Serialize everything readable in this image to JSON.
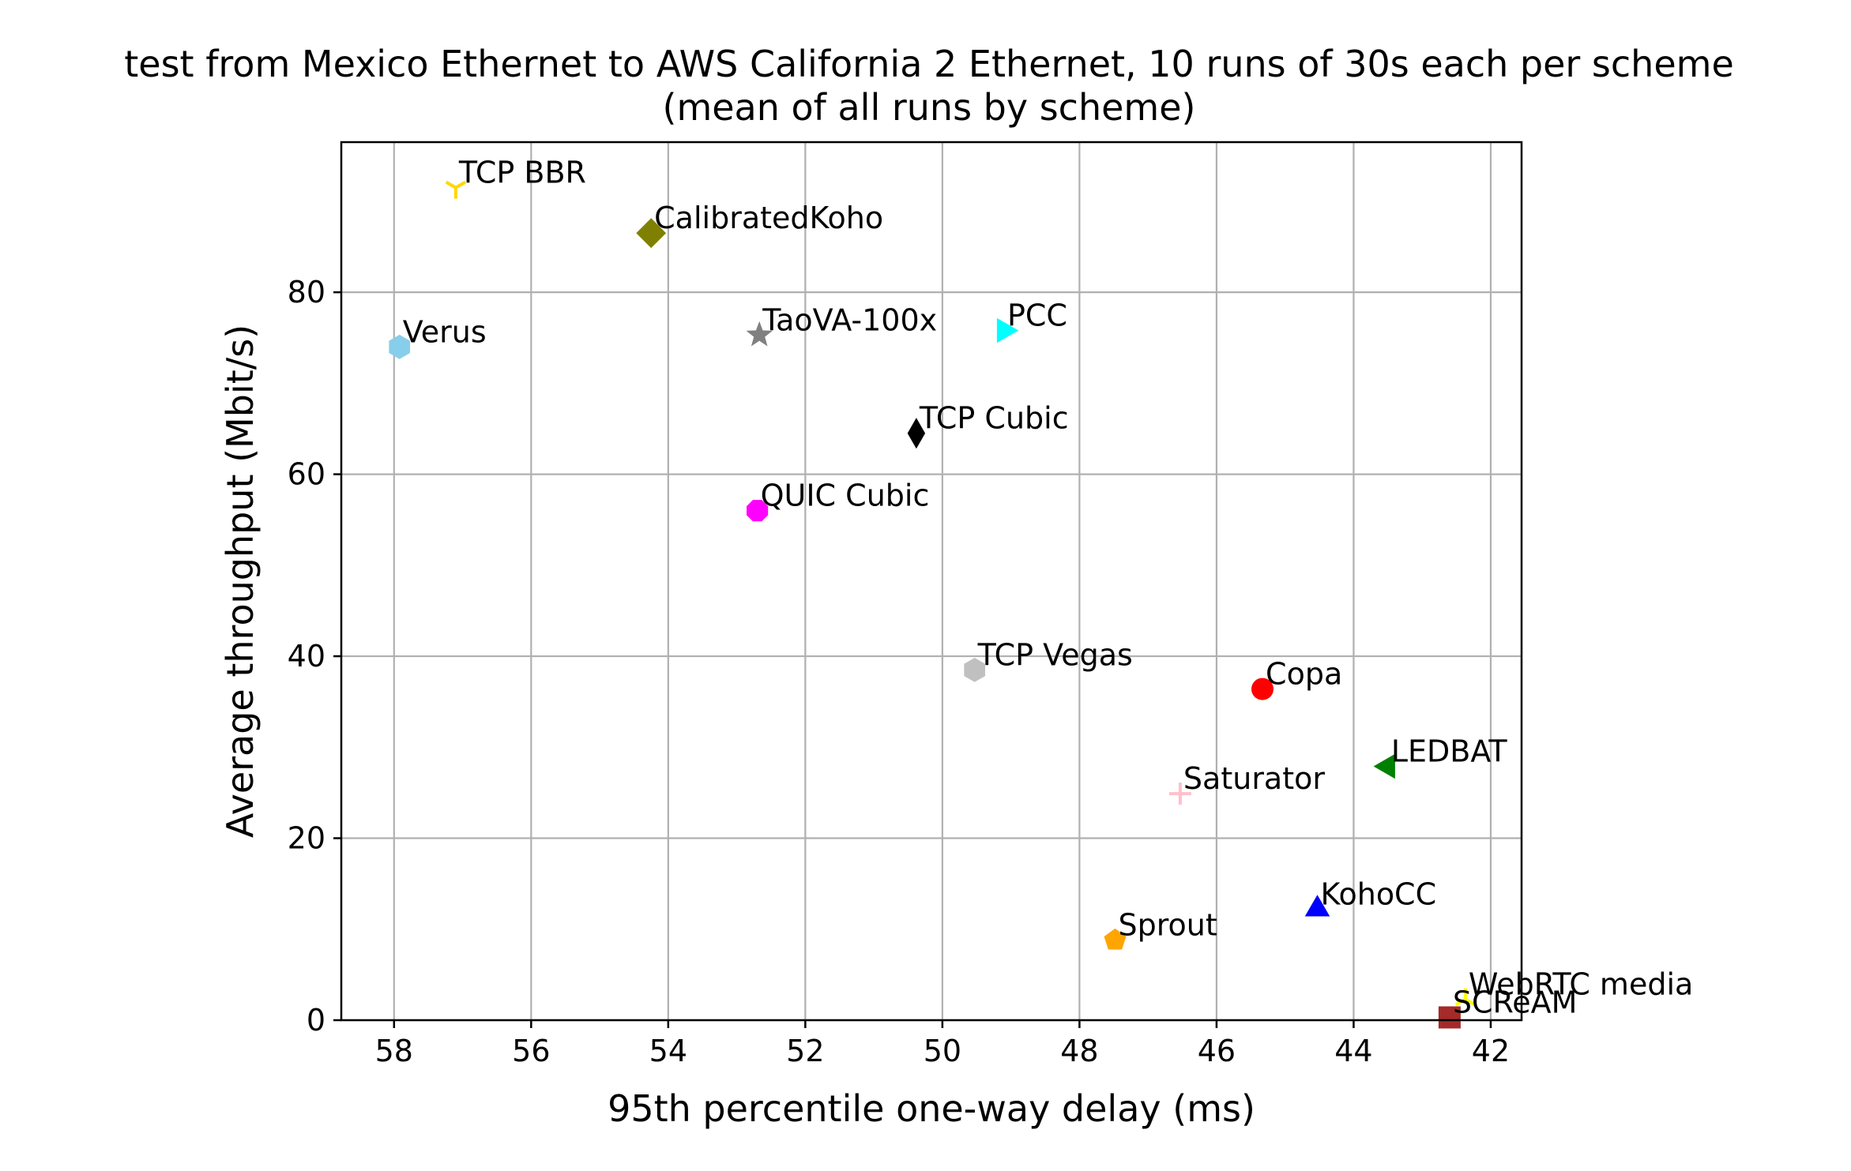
{
  "chart_data": {
    "type": "scatter",
    "title": "test from Mexico Ethernet to AWS California 2 Ethernet, 10 runs of 30s each per scheme",
    "subtitle": "(mean of all runs by scheme)",
    "xlabel": "95th percentile one-way delay (ms)",
    "ylabel": "Average throughput (Mbit/s)",
    "xlim": [
      58.77,
      41.55
    ],
    "ylim": [
      0,
      96.5
    ],
    "x_inverted": true,
    "xticks": [
      58,
      56,
      54,
      52,
      50,
      48,
      46,
      44,
      42
    ],
    "yticks": [
      0,
      20,
      40,
      60,
      80
    ],
    "grid": true,
    "points": [
      {
        "name": "TCP BBR",
        "x": 57.1,
        "y": 91.5,
        "marker": "tri-down",
        "color": "#ffd700"
      },
      {
        "name": "CalibratedKoho",
        "x": 54.25,
        "y": 86.5,
        "marker": "diamond",
        "color": "#808000"
      },
      {
        "name": "Verus",
        "x": 57.92,
        "y": 74.0,
        "marker": "hexagon",
        "color": "#87ceeb"
      },
      {
        "name": "TaoVA-100x",
        "x": 52.67,
        "y": 75.3,
        "marker": "star",
        "color": "#808080"
      },
      {
        "name": "PCC",
        "x": 49.1,
        "y": 75.8,
        "marker": "triangle-right",
        "color": "#00ffff"
      },
      {
        "name": "TCP Cubic",
        "x": 50.38,
        "y": 64.5,
        "marker": "thin-diamond",
        "color": "#000000"
      },
      {
        "name": "QUIC Cubic",
        "x": 52.7,
        "y": 56.0,
        "marker": "octagon",
        "color": "#ff00ff"
      },
      {
        "name": "TCP Vegas",
        "x": 49.53,
        "y": 38.5,
        "marker": "hexagon",
        "color": "#c0c0c0"
      },
      {
        "name": "Copa",
        "x": 45.33,
        "y": 36.4,
        "marker": "circle",
        "color": "#ff0000"
      },
      {
        "name": "LEDBAT",
        "x": 43.5,
        "y": 27.9,
        "marker": "triangle-left",
        "color": "#008000"
      },
      {
        "name": "Saturator",
        "x": 46.53,
        "y": 24.9,
        "marker": "plus",
        "color": "#ffc0cb"
      },
      {
        "name": "KohoCC",
        "x": 44.53,
        "y": 12.2,
        "marker": "triangle-up",
        "color": "#0000ff"
      },
      {
        "name": "Sprout",
        "x": 47.48,
        "y": 8.8,
        "marker": "pentagon",
        "color": "#ffa500"
      },
      {
        "name": "WebRTC media",
        "x": 42.37,
        "y": 2.3,
        "marker": "tri-up",
        "color": "#ffff00"
      },
      {
        "name": "SCReAM",
        "x": 42.6,
        "y": 0.3,
        "marker": "square",
        "color": "#a52a2a"
      }
    ]
  }
}
